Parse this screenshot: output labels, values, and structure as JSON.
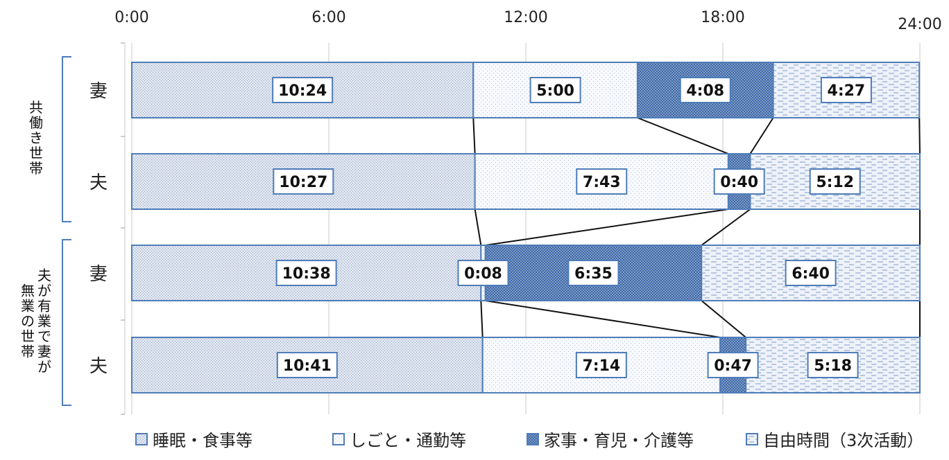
{
  "chart_data": {
    "type": "bar",
    "orientation": "horizontal",
    "stacked": true,
    "x_unit": "hours",
    "x_ticks": [
      "0:00",
      "6:00",
      "12:00",
      "18:00",
      "24:00"
    ],
    "xlim": [
      0,
      24
    ],
    "groups": [
      {
        "label": "共働き世帯",
        "rows": [
          0,
          1
        ]
      },
      {
        "label": "夫が有業で妻が無業の世帯",
        "label_lines": [
          "夫が有業で妻が",
          "無業の世帯"
        ],
        "rows": [
          2,
          3
        ]
      }
    ],
    "categories": [
      "妻",
      "夫",
      "妻",
      "夫"
    ],
    "series": [
      {
        "name": "睡眠・食事等",
        "values": [
          "10:24",
          "10:27",
          "10:38",
          "10:41"
        ]
      },
      {
        "name": "しごと・通勤等",
        "values": [
          "5:00",
          "7:43",
          "0:08",
          "7:14"
        ]
      },
      {
        "name": "家事・育児・介護等",
        "values": [
          "4:08",
          "0:40",
          "6:35",
          "0:47"
        ]
      },
      {
        "name": "自由時間（3次活動）",
        "values": [
          "4:27",
          "5:12",
          "6:40",
          "5:18"
        ]
      }
    ],
    "legend": {
      "position": "bottom",
      "labels": [
        "睡眠・食事等",
        "しごと・通勤等",
        "家事・育児・介護等",
        "自由時間（3次活動）"
      ]
    },
    "colors": {
      "border": "#4e7cb8",
      "sleep": "#d3dbe8",
      "work": "#f1f4fa",
      "house": "#5a7fb5",
      "free": "#e8eef8"
    },
    "connector_lines": true
  }
}
